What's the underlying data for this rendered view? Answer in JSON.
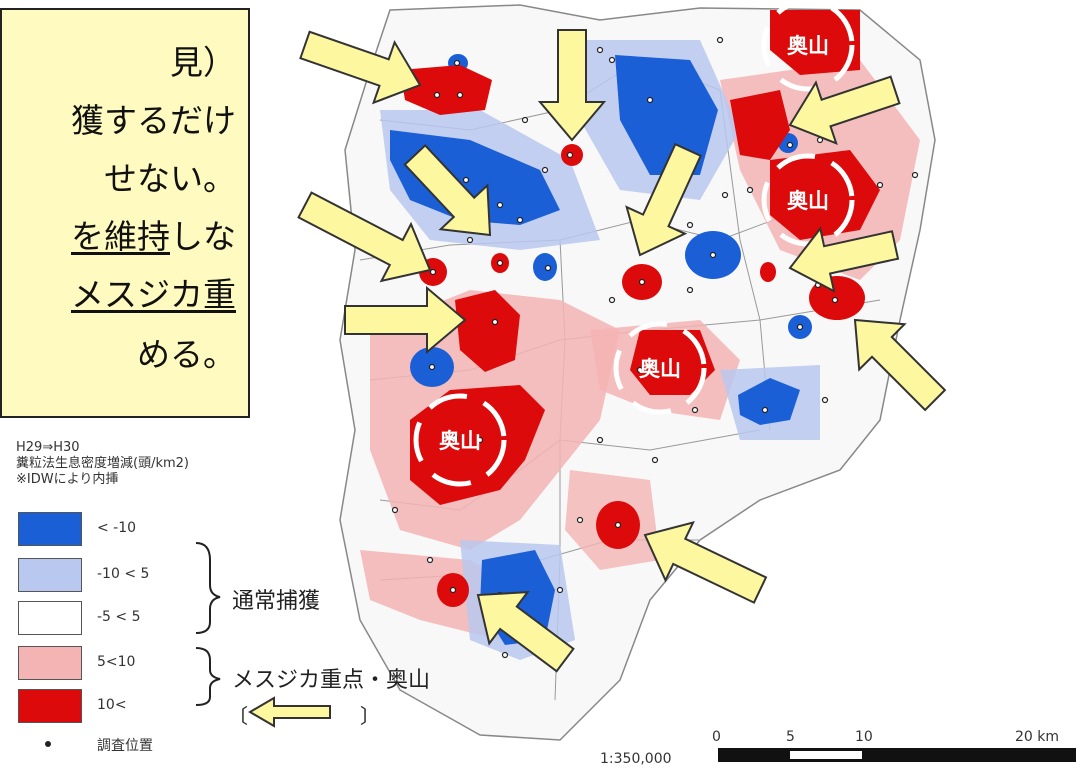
{
  "callout": {
    "lines": [
      "見）",
      "獲するだけ",
      "せない。",
      "を維持しな",
      "メスジカ重",
      "める。"
    ],
    "underlined": [
      "を維持",
      "メスジカ重"
    ]
  },
  "legend": {
    "title_line1": "H29⇒H30",
    "title_line2": "糞粒法生息密度増減(頭/km2)",
    "title_line3": "※IDWにより内挿",
    "classes": [
      {
        "label": "< -10",
        "color": "#1a5fd6"
      },
      {
        "label": "-10 < 5",
        "color": "#b8c8ef"
      },
      {
        "label": "-5 < 5",
        "color": "#ffffff"
      },
      {
        "label": "5<10",
        "color": "#f4b4b4"
      },
      {
        "label": "10<",
        "color": "#dc0a0a"
      }
    ],
    "group_normal": "通常捕獲",
    "group_priority": "メスジカ重点・奥山",
    "bracket_open": "〔",
    "bracket_close": "〕",
    "survey_point": "調査位置"
  },
  "map": {
    "okuyama_label": "奥山",
    "arrow_color": "#fdf8a0"
  },
  "scale": {
    "ticks": [
      "0",
      "5",
      "10",
      "20 km"
    ],
    "ratio": "1:350,000"
  }
}
